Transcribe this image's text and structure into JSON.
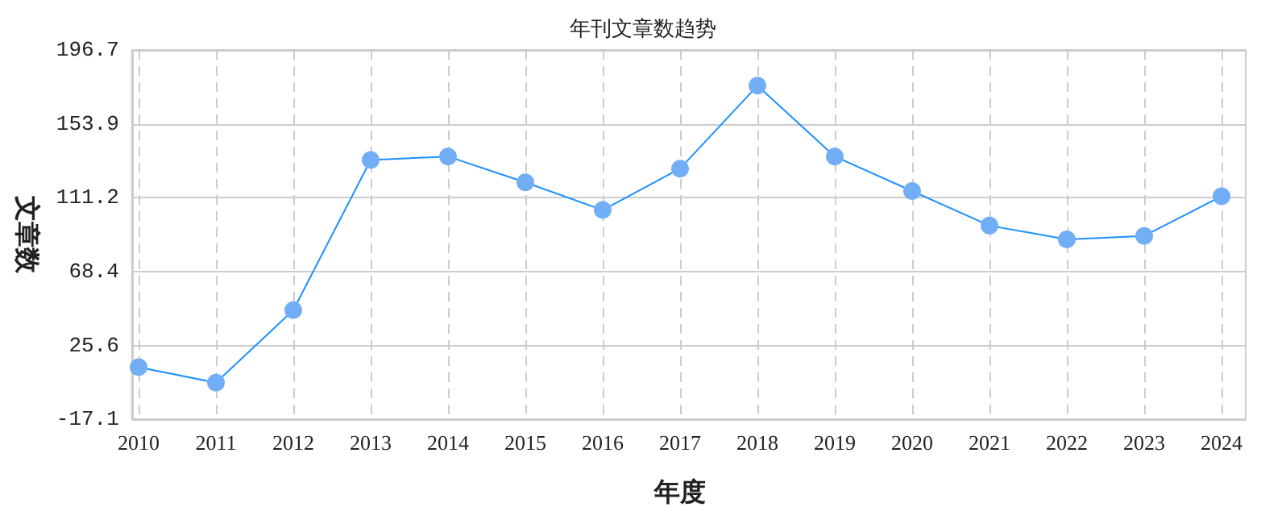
{
  "chart_data": {
    "type": "line",
    "title": "年刊文章数趋势",
    "xlabel": "年度",
    "ylabel": "文章数",
    "categories": [
      "2010",
      "2011",
      "2012",
      "2013",
      "2014",
      "2015",
      "2016",
      "2017",
      "2018",
      "2019",
      "2020",
      "2021",
      "2022",
      "2023",
      "2024"
    ],
    "series": [
      {
        "color": "#1e90ff",
        "values": [
          13,
          4,
          46,
          133,
          135,
          120,
          104,
          128,
          176,
          135,
          115,
          95,
          87,
          89,
          112
        ]
      }
    ],
    "ylim": [
      -17.1,
      196.7
    ],
    "yticks": [
      -17.1,
      25.6,
      68.4,
      111.2,
      153.9,
      196.7
    ],
    "grid": true,
    "marker": "circle",
    "line_style": "solid"
  }
}
